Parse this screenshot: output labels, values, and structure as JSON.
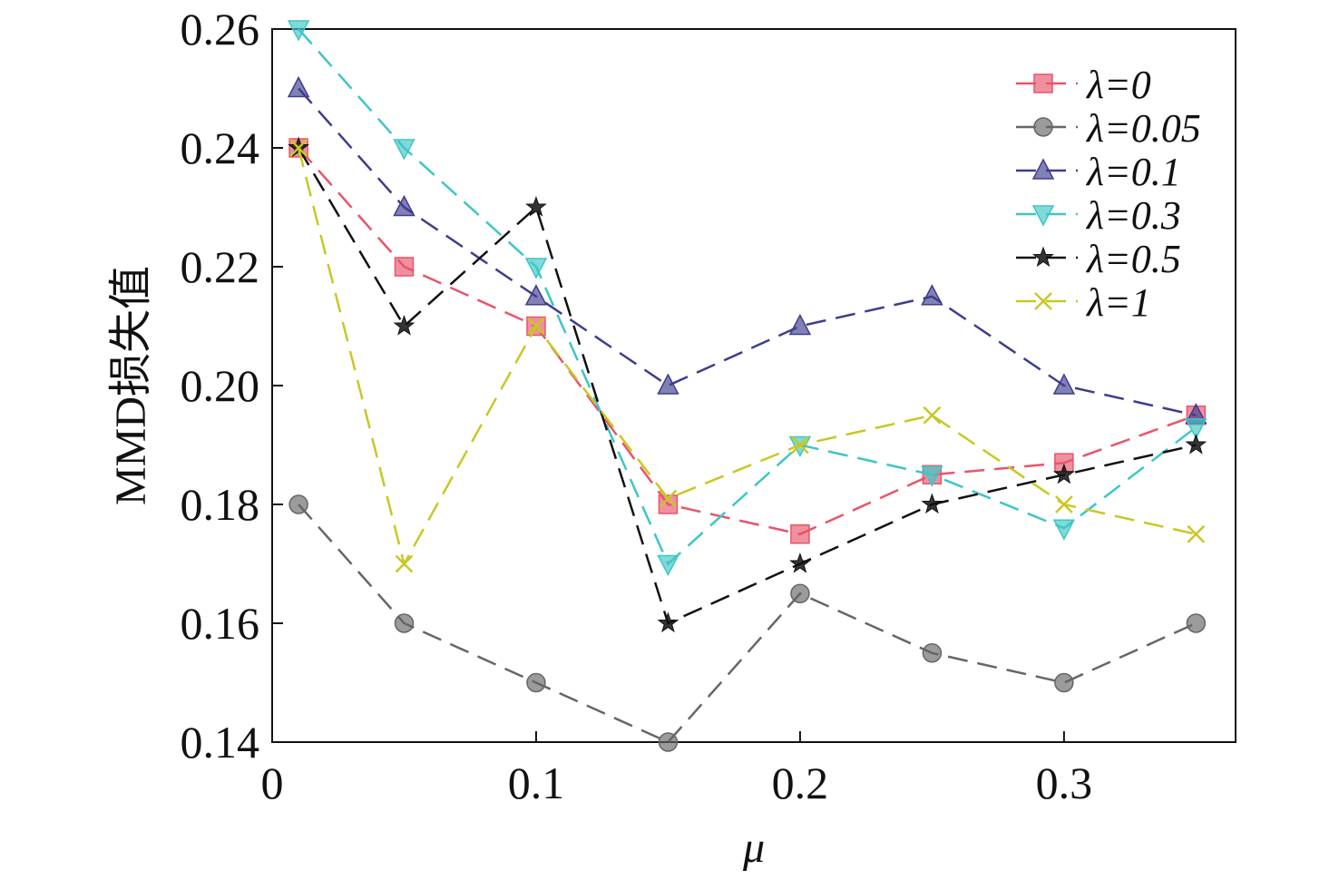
{
  "chart_data": {
    "type": "line",
    "title": "",
    "xlabel": "μ",
    "ylabel": "MMD损失值",
    "xlim": [
      0,
      0.365
    ],
    "ylim": [
      0.14,
      0.26
    ],
    "x_ticks": [
      0,
      0.1,
      0.2,
      0.3
    ],
    "x_tick_labels": [
      "0",
      "0.1",
      "0.2",
      "0.3"
    ],
    "y_ticks": [
      0.14,
      0.16,
      0.18,
      0.2,
      0.22,
      0.24,
      0.26
    ],
    "y_tick_labels": [
      "0.14",
      "0.16",
      "0.18",
      "0.20",
      "0.22",
      "0.24",
      "0.26"
    ],
    "grid": false,
    "legend_position": "top-right",
    "line_style": "dashed",
    "x": [
      0.01,
      0.05,
      0.1,
      0.15,
      0.2,
      0.25,
      0.3,
      0.35
    ],
    "series": [
      {
        "name": "λ=0",
        "marker": "square",
        "color": "#e8546a",
        "values": [
          0.24,
          0.22,
          0.21,
          0.18,
          0.175,
          0.185,
          0.187,
          0.195
        ]
      },
      {
        "name": "λ=0.05",
        "marker": "circle",
        "color": "#666666",
        "values": [
          0.18,
          0.16,
          0.15,
          0.14,
          0.165,
          0.155,
          0.15,
          0.16
        ]
      },
      {
        "name": "λ=0.1",
        "marker": "triangle-up",
        "color": "#3d3d8f",
        "values": [
          0.25,
          0.23,
          0.215,
          0.2,
          0.21,
          0.215,
          0.2,
          0.195
        ]
      },
      {
        "name": "λ=0.3",
        "marker": "triangle-down",
        "color": "#3ec6c6",
        "values": [
          0.26,
          0.24,
          0.22,
          0.17,
          0.19,
          0.185,
          0.176,
          0.193
        ]
      },
      {
        "name": "λ=0.5",
        "marker": "star",
        "color": "#111111",
        "values": [
          0.24,
          0.21,
          0.23,
          0.16,
          0.17,
          0.18,
          0.185,
          0.19
        ]
      },
      {
        "name": "λ=1",
        "marker": "x",
        "color": "#c8c824",
        "values": [
          0.24,
          0.17,
          0.21,
          0.181,
          0.19,
          0.195,
          0.18,
          0.175
        ]
      }
    ]
  }
}
